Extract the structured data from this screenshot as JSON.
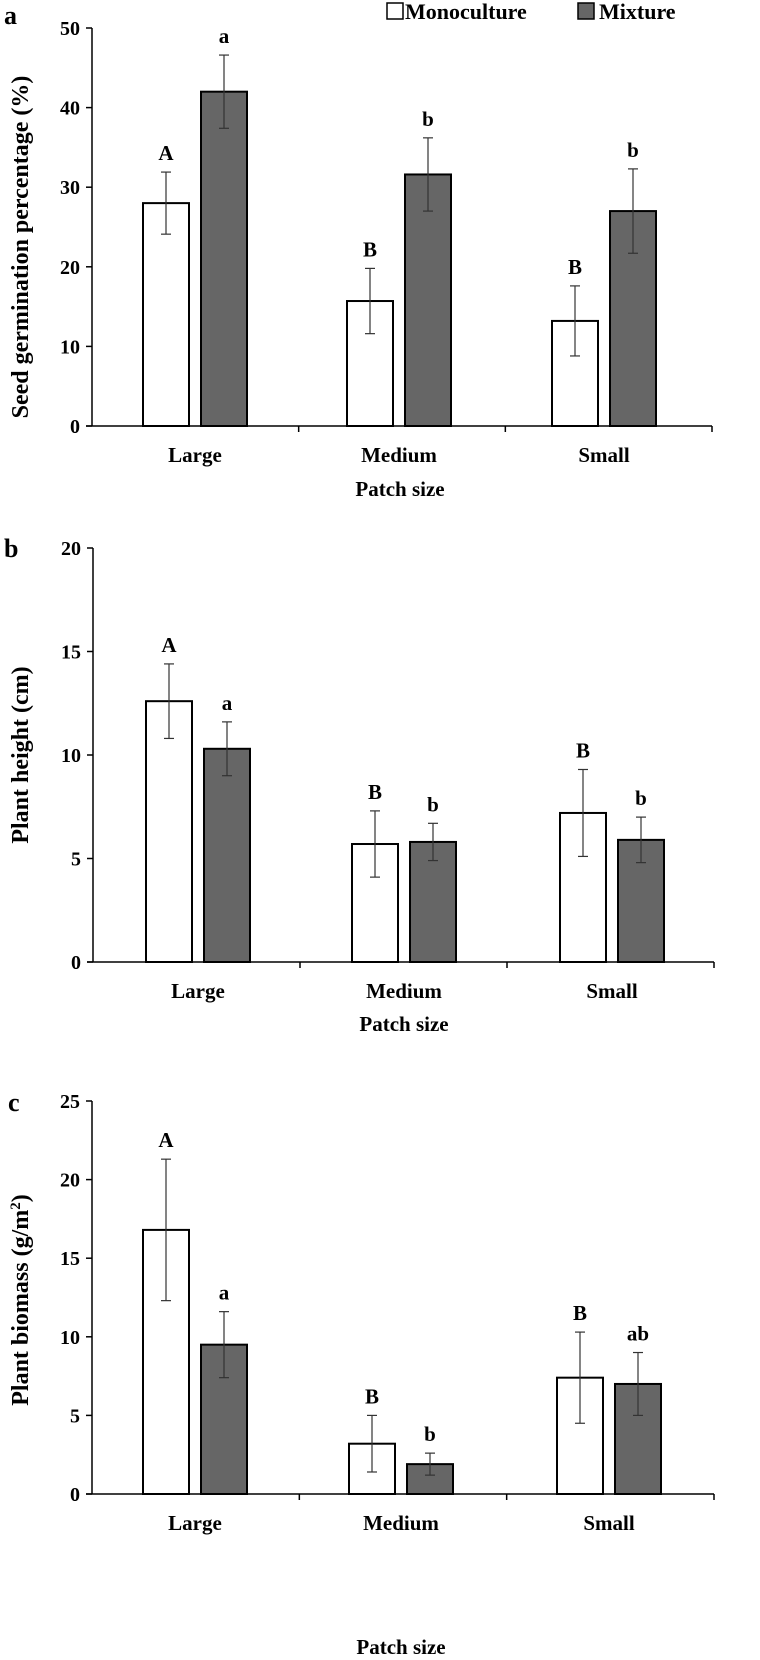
{
  "legend": {
    "monoculture_label": "Monoculture",
    "mixture_label": "Mixture",
    "monoculture_color": "#ffffff",
    "mixture_color": "#666666"
  },
  "chart_data": [
    {
      "type": "bar",
      "panel": "a",
      "categories": [
        "Large",
        "Medium",
        "Small"
      ],
      "xlabel": "Patch size",
      "ylabel": "Seed germination percentage  (%)",
      "ylim": [
        0,
        50
      ],
      "yticks": [
        0,
        10,
        20,
        30,
        40,
        50
      ],
      "series": [
        {
          "name": "Monoculture",
          "values": [
            28,
            15.7,
            13.2
          ],
          "errors": [
            3.9,
            4.1,
            4.4
          ],
          "letters": [
            "A",
            "B",
            "B"
          ]
        },
        {
          "name": "Mixture",
          "values": [
            42,
            31.6,
            27
          ],
          "errors": [
            4.6,
            4.6,
            5.3
          ],
          "letters": [
            "a",
            "b",
            "b"
          ]
        }
      ]
    },
    {
      "type": "bar",
      "panel": "b",
      "categories": [
        "Large",
        "Medium",
        "Small"
      ],
      "xlabel": "Patch size",
      "ylabel": "Plant height (cm)",
      "ylim": [
        0,
        20
      ],
      "yticks": [
        0,
        5,
        10,
        15,
        20
      ],
      "series": [
        {
          "name": "Monoculture",
          "values": [
            12.6,
            5.7,
            7.2
          ],
          "errors": [
            1.8,
            1.6,
            2.1
          ],
          "letters": [
            "A",
            "B",
            "B"
          ]
        },
        {
          "name": "Mixture",
          "values": [
            10.3,
            5.8,
            5.9
          ],
          "errors": [
            1.3,
            0.9,
            1.1
          ],
          "letters": [
            "a",
            "b",
            "b"
          ]
        }
      ]
    },
    {
      "type": "bar",
      "panel": "c",
      "categories": [
        "Large",
        "Medium",
        "Small"
      ],
      "xlabel": "Patch size",
      "ylabel_main": "Plant biomass (g/m",
      "ylabel_sup": "2",
      "ylabel_end": ")",
      "ylim": [
        0,
        25
      ],
      "yticks": [
        0,
        5,
        10,
        15,
        20,
        25
      ],
      "series": [
        {
          "name": "Monoculture",
          "values": [
            16.8,
            3.2,
            7.4
          ],
          "errors": [
            4.5,
            1.8,
            2.9
          ],
          "letters": [
            "A",
            "B",
            "B"
          ]
        },
        {
          "name": "Mixture",
          "values": [
            9.5,
            1.9,
            7
          ],
          "errors": [
            2.1,
            0.7,
            2
          ],
          "letters": [
            "a",
            "b",
            "ab"
          ]
        }
      ]
    }
  ]
}
